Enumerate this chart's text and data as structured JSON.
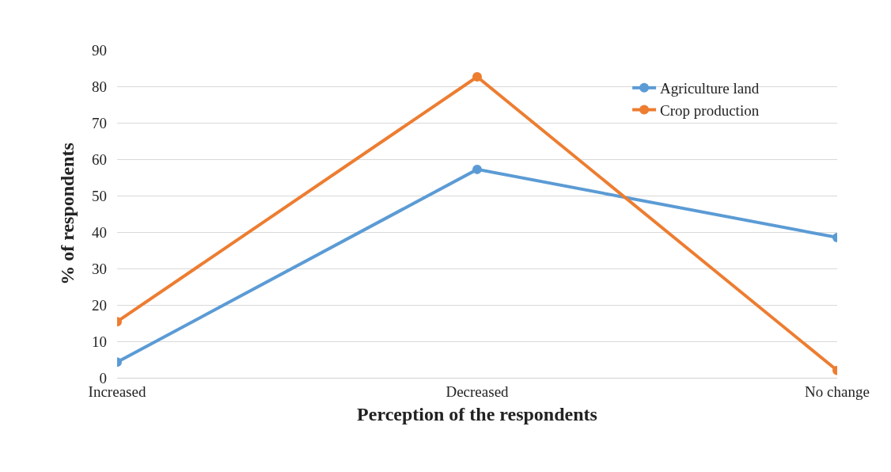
{
  "chart_data": {
    "type": "line",
    "xlabel": "Perception of the respondents",
    "ylabel": "% of respondents",
    "categories": [
      "Increased",
      "Decreased",
      "No change"
    ],
    "series": [
      {
        "name": "Agriculture land",
        "color": "#5b9bd5",
        "values": [
          4.3,
          57.2,
          38.5
        ]
      },
      {
        "name": "Crop production",
        "color": "#ed7d31",
        "values": [
          15.4,
          82.6,
          2.0
        ]
      }
    ],
    "ylim": [
      0,
      90
    ],
    "yticks": [
      0,
      10,
      20,
      30,
      40,
      50,
      60,
      70,
      80,
      90
    ],
    "grid": "y",
    "legend": "top right",
    "marker": "circle",
    "line_style": "solid"
  }
}
